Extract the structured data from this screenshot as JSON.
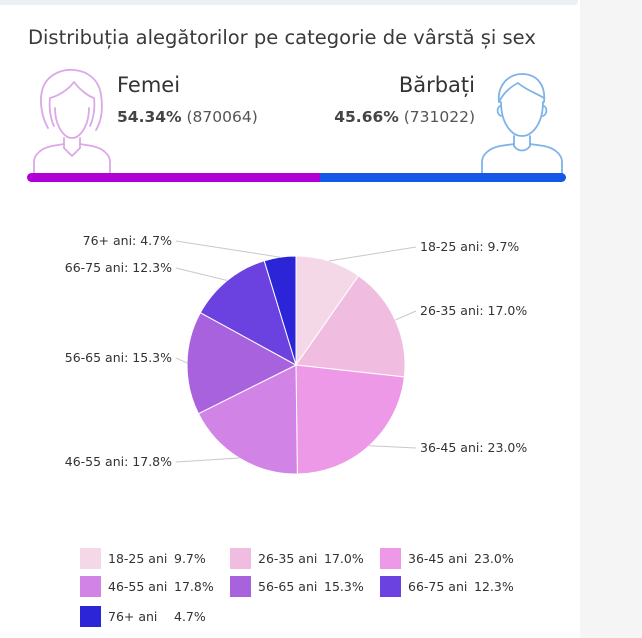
{
  "title": "Distribuția alegătorilor pe categorie de vârstă și sex",
  "female": {
    "label": "Femei",
    "percent": "54.34%",
    "count": "(870064)",
    "share": 54.34,
    "color": "#b000d6"
  },
  "male": {
    "label": "Bărbați",
    "percent": "45.66%",
    "count": "(731022)",
    "share": 45.66,
    "color": "#1658e6"
  },
  "chart_data": {
    "type": "pie",
    "title": "",
    "slices": [
      {
        "label": "18-25 ani",
        "value": 9.7,
        "callout": "18-25 ani: 9.7%",
        "legend_value": "9.7%",
        "color": "#f5d8e7"
      },
      {
        "label": "26-35 ani",
        "value": 17.0,
        "callout": "26-35 ani: 17.0%",
        "legend_value": "17.0%",
        "color": "#f0bde1"
      },
      {
        "label": "36-45 ani",
        "value": 23.0,
        "callout": "36-45 ani: 23.0%",
        "legend_value": "23.0%",
        "color": "#ed99e8"
      },
      {
        "label": "46-55 ani",
        "value": 17.8,
        "callout": "46-55 ani: 17.8%",
        "legend_value": "17.8%",
        "color": "#d184e6"
      },
      {
        "label": "56-65 ani",
        "value": 15.3,
        "callout": "56-65 ani: 15.3%",
        "legend_value": "15.3%",
        "color": "#a962de"
      },
      {
        "label": "66-75 ani",
        "value": 12.3,
        "callout": "66-75 ani: 12.3%",
        "legend_value": "12.3%",
        "color": "#6b42e0"
      },
      {
        "label": "76+ ani",
        "value": 4.7,
        "callout": "76+ ani: 4.7%",
        "legend_value": "4.7%",
        "color": "#2c25d8"
      }
    ],
    "legend_placement": "bottom"
  }
}
